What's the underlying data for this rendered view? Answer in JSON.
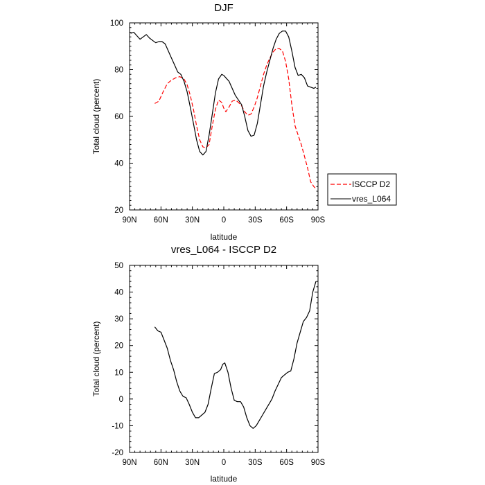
{
  "chart_data": [
    {
      "type": "line",
      "title": "DJF",
      "xlabel": "latitude",
      "ylabel": "Total cloud (percent)",
      "xlim": [
        -90,
        90
      ],
      "ylim": [
        20,
        100
      ],
      "xticks": [
        -90,
        -60,
        -30,
        0,
        30,
        60,
        90
      ],
      "xtick_labels": [
        "90N",
        "60N",
        "30N",
        "0",
        "30S",
        "60S",
        "90S"
      ],
      "yticks": [
        20,
        40,
        60,
        80,
        100
      ],
      "ytick_labels": [
        "20",
        "40",
        "60",
        "80",
        "100"
      ],
      "legend_position": "right",
      "series": [
        {
          "name": "ISCCP D2",
          "color": "#ff0000",
          "dash": "dashed",
          "x": [
            -66,
            -62,
            -58,
            -54,
            -50,
            -46,
            -42,
            -38,
            -35,
            -32,
            -29,
            -26,
            -23,
            -20,
            -17,
            -14,
            -11,
            -8,
            -5,
            -2,
            0,
            2,
            5,
            8,
            11,
            14,
            17,
            20,
            23,
            26,
            29,
            32,
            35,
            38,
            41,
            44,
            47,
            50,
            53,
            56,
            59,
            62,
            65,
            68,
            71,
            74,
            77,
            80,
            83,
            86,
            88
          ],
          "y": [
            65.5,
            66.5,
            70.5,
            74,
            75.5,
            76.5,
            77,
            76,
            73.5,
            69,
            63,
            56,
            50,
            47,
            46.5,
            48,
            56,
            63,
            67,
            66,
            63.5,
            62,
            64,
            66.5,
            67,
            66,
            64.5,
            62,
            60.5,
            61,
            64,
            68,
            73,
            78,
            82,
            85,
            87.5,
            89,
            89,
            88,
            83.5,
            76,
            65,
            56,
            52,
            48,
            43,
            38,
            32,
            30,
            29
          ]
        },
        {
          "name": "vres_L064",
          "color": "#000000",
          "dash": "solid",
          "x": [
            -89,
            -86,
            -83,
            -80,
            -77,
            -74,
            -71,
            -68,
            -65,
            -62,
            -59,
            -56,
            -53,
            -50,
            -47,
            -44,
            -41,
            -38,
            -35,
            -32,
            -29,
            -26,
            -23,
            -20,
            -17,
            -14,
            -11,
            -8,
            -5,
            -2,
            0,
            2,
            5,
            8,
            11,
            14,
            17,
            20,
            23,
            26,
            29,
            32,
            35,
            38,
            41,
            44,
            47,
            50,
            53,
            56,
            59,
            62,
            65,
            68,
            71,
            74,
            77,
            80,
            83,
            86,
            88
          ],
          "y": [
            95.5,
            96,
            94.5,
            93,
            94,
            95,
            93.5,
            92.5,
            91.5,
            92,
            92,
            91,
            88,
            85,
            82,
            79,
            78,
            75,
            70.5,
            64,
            57,
            50,
            45,
            43.5,
            45,
            52,
            61,
            70,
            76,
            78,
            77.5,
            76.5,
            75,
            72,
            69,
            67,
            65,
            60,
            54,
            51.5,
            52,
            57,
            65,
            73,
            79,
            84,
            89,
            93,
            95.5,
            96.5,
            96.5,
            94,
            88,
            81,
            77.5,
            78,
            76.5,
            73,
            72.5,
            72,
            72.5
          ]
        }
      ]
    },
    {
      "type": "line",
      "title": "vres_L064 - ISCCP D2",
      "xlabel": "latitude",
      "ylabel": "Total cloud (percent)",
      "xlim": [
        -90,
        90
      ],
      "ylim": [
        -20,
        50
      ],
      "xticks": [
        -90,
        -60,
        -30,
        0,
        30,
        60,
        90
      ],
      "xtick_labels": [
        "90N",
        "60N",
        "30N",
        "0",
        "30S",
        "60S",
        "90S"
      ],
      "yticks": [
        -20,
        -10,
        0,
        10,
        20,
        30,
        40,
        50
      ],
      "ytick_labels": [
        "-20",
        "-10",
        "0",
        "10",
        "20",
        "30",
        "40",
        "50"
      ],
      "series": [
        {
          "color": "#000000",
          "dash": "solid",
          "x": [
            -66,
            -63,
            -60,
            -57,
            -54,
            -51,
            -48,
            -45,
            -42,
            -39,
            -36,
            -33,
            -30,
            -27,
            -24,
            -21,
            -18,
            -15,
            -12,
            -9,
            -6,
            -3,
            -1,
            1,
            4,
            7,
            10,
            13,
            16,
            19,
            22,
            25,
            28,
            31,
            34,
            37,
            40,
            43,
            46,
            49,
            52,
            55,
            58,
            61,
            64,
            67,
            70,
            73,
            76,
            79,
            82,
            85,
            88
          ],
          "y": [
            27,
            25.5,
            25,
            22,
            19,
            14.5,
            11,
            6.5,
            3,
            1,
            0.5,
            -2,
            -5,
            -7,
            -7,
            -6,
            -5,
            -2,
            4,
            9.5,
            10,
            11,
            13,
            13.5,
            10,
            4,
            -0.5,
            -1,
            -1,
            -3,
            -7,
            -10,
            -11,
            -10,
            -8,
            -6,
            -4,
            -2,
            0,
            3,
            5.5,
            8,
            9,
            10,
            10.5,
            15,
            21,
            25,
            29,
            30.5,
            33,
            40,
            44
          ]
        }
      ]
    }
  ]
}
